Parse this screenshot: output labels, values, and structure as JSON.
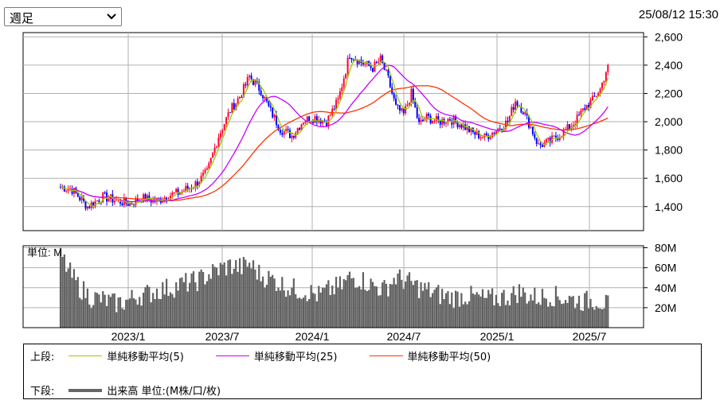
{
  "controls": {
    "period_select": "週足",
    "timestamp": "25/08/12 15:30"
  },
  "legend": {
    "upper_label": "上段:",
    "lower_label": "下段:",
    "items": [
      {
        "label": "単純移動平均(5)",
        "color": "#99cc00"
      },
      {
        "label": "単純移動平均(25)",
        "color": "#cc00ff"
      },
      {
        "label": "単純移動平均(50)",
        "color": "#ff3300"
      }
    ],
    "volume_label": "出来高 単位:(M株/口/枚)",
    "volume_color": "#666666"
  },
  "colors": {
    "up": "#ff0033",
    "down": "#0000ff",
    "grid": "#b0b0b0",
    "volume": "#606060"
  },
  "chart_data": [
    {
      "type": "candlestick",
      "title": "",
      "x_ticks": [
        "2023/1",
        "2023/7",
        "2024/1",
        "2024/7",
        "2025/1",
        "2025/7"
      ],
      "y_ticks": [
        1400,
        1600,
        1800,
        2000,
        2200,
        2400,
        2600
      ],
      "y_tick_labels": [
        "1,400",
        "1,600",
        "1,800",
        "2,000",
        "2,200",
        "2,400",
        "2,600"
      ],
      "ylim": [
        1230,
        2630
      ],
      "grid": true,
      "series": [
        {
          "name": "単純移動平均(5)",
          "color": "#99cc00"
        },
        {
          "name": "単純移動平均(25)",
          "color": "#cc00ff"
        },
        {
          "name": "単純移動平均(50)",
          "color": "#ff3300"
        }
      ],
      "price_path": [
        [
          0,
          1540
        ],
        [
          6,
          1520
        ],
        [
          14,
          1400
        ],
        [
          22,
          1470
        ],
        [
          30,
          1440
        ],
        [
          36,
          1420
        ],
        [
          42,
          1460
        ],
        [
          50,
          1440
        ],
        [
          56,
          1480
        ],
        [
          62,
          1500
        ],
        [
          70,
          1560
        ],
        [
          76,
          1640
        ],
        [
          82,
          1900
        ],
        [
          88,
          2080
        ],
        [
          94,
          2200
        ],
        [
          98,
          2320
        ],
        [
          104,
          2220
        ],
        [
          108,
          2100
        ],
        [
          114,
          1950
        ],
        [
          120,
          1900
        ],
        [
          126,
          2010
        ],
        [
          132,
          2030
        ],
        [
          138,
          2000
        ],
        [
          144,
          2150
        ],
        [
          150,
          2480
        ],
        [
          156,
          2420
        ],
        [
          162,
          2380
        ],
        [
          166,
          2440
        ],
        [
          170,
          2300
        ],
        [
          174,
          2100
        ],
        [
          178,
          2050
        ],
        [
          182,
          2200
        ],
        [
          186,
          1980
        ],
        [
          190,
          2030
        ],
        [
          196,
          2000
        ],
        [
          202,
          2020
        ],
        [
          208,
          1980
        ],
        [
          214,
          1920
        ],
        [
          220,
          1890
        ],
        [
          226,
          1940
        ],
        [
          232,
          2000
        ],
        [
          236,
          2150
        ],
        [
          240,
          2080
        ],
        [
          244,
          1960
        ],
        [
          248,
          1830
        ],
        [
          254,
          1860
        ],
        [
          260,
          1920
        ],
        [
          264,
          1960
        ],
        [
          268,
          2020
        ],
        [
          272,
          2100
        ],
        [
          276,
          2150
        ],
        [
          280,
          2230
        ],
        [
          284,
          2400
        ]
      ],
      "last_close": 2400
    },
    {
      "type": "bar",
      "title": "単位: M",
      "x_ticks": [
        "2023/1",
        "2023/7",
        "2024/1",
        "2024/7",
        "2025/1",
        "2025/7"
      ],
      "y_ticks": [
        20,
        40,
        60,
        80
      ],
      "y_tick_labels": [
        "20M",
        "40M",
        "60M",
        "80M"
      ],
      "ylim": [
        0,
        82
      ],
      "grid": true,
      "volume_path": [
        [
          0,
          72
        ],
        [
          4,
          55
        ],
        [
          10,
          38
        ],
        [
          16,
          28
        ],
        [
          22,
          26
        ],
        [
          28,
          22
        ],
        [
          34,
          24
        ],
        [
          40,
          30
        ],
        [
          46,
          32
        ],
        [
          52,
          36
        ],
        [
          58,
          38
        ],
        [
          64,
          42
        ],
        [
          70,
          44
        ],
        [
          76,
          50
        ],
        [
          82,
          56
        ],
        [
          88,
          60
        ],
        [
          94,
          58
        ],
        [
          98,
          62
        ],
        [
          104,
          50
        ],
        [
          110,
          46
        ],
        [
          116,
          40
        ],
        [
          122,
          36
        ],
        [
          128,
          34
        ],
        [
          134,
          30
        ],
        [
          140,
          36
        ],
        [
          146,
          40
        ],
        [
          150,
          48
        ],
        [
          156,
          46
        ],
        [
          162,
          40
        ],
        [
          168,
          36
        ],
        [
          174,
          48
        ],
        [
          180,
          44
        ],
        [
          186,
          38
        ],
        [
          192,
          34
        ],
        [
          198,
          30
        ],
        [
          204,
          28
        ],
        [
          210,
          30
        ],
        [
          216,
          28
        ],
        [
          222,
          26
        ],
        [
          228,
          28
        ],
        [
          234,
          30
        ],
        [
          238,
          34
        ],
        [
          242,
          30
        ],
        [
          248,
          28
        ],
        [
          254,
          30
        ],
        [
          260,
          28
        ],
        [
          266,
          26
        ],
        [
          272,
          24
        ],
        [
          278,
          26
        ],
        [
          284,
          20
        ]
      ]
    }
  ]
}
